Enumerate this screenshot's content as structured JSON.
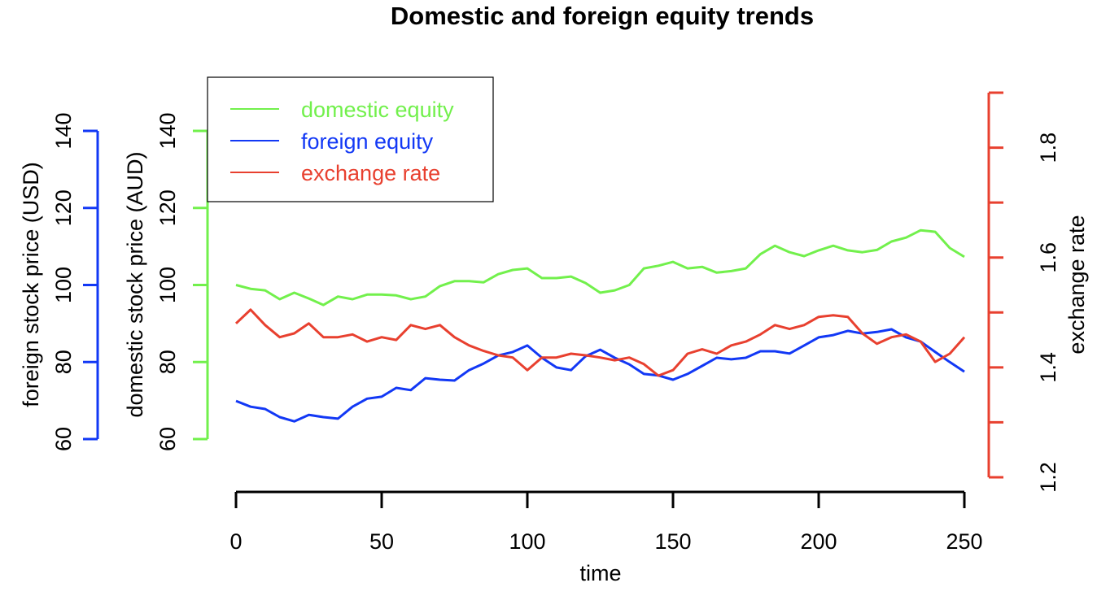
{
  "chart_data": {
    "type": "line",
    "title": "Domestic and foreign equity trends",
    "xlabel": "time",
    "xlim": [
      0,
      250
    ],
    "x_ticks": [
      0,
      50,
      100,
      150,
      200,
      250
    ],
    "grid": false,
    "legend_placement": "top-left",
    "axes": {
      "foreign": {
        "label": "foreign stock price (USD)",
        "ylim": [
          60,
          140
        ],
        "ticks": [
          60,
          80,
          100,
          120,
          140
        ],
        "color": "#1238F5",
        "side": "left-outer"
      },
      "domestic": {
        "label": "domestic stock price (AUD)",
        "ylim": [
          60,
          140
        ],
        "ticks": [
          60,
          80,
          100,
          120,
          140
        ],
        "color": "#72F04C",
        "side": "left-inner"
      },
      "exchange": {
        "label": "exchange rate",
        "ylim": [
          1.2,
          1.9
        ],
        "ticks": [
          1.2,
          1.3,
          1.4,
          1.5,
          1.6,
          1.7,
          1.8,
          1.9
        ],
        "tick_labels": [
          "1.2",
          "",
          "1.4",
          "",
          "1.6",
          "",
          "1.8",
          ""
        ],
        "color": "#E8402F",
        "side": "right"
      }
    },
    "x": [
      0,
      5,
      10,
      15,
      20,
      25,
      30,
      35,
      40,
      45,
      50,
      55,
      60,
      65,
      70,
      75,
      80,
      85,
      90,
      95,
      100,
      105,
      110,
      115,
      120,
      125,
      130,
      135,
      140,
      145,
      150,
      155,
      160,
      165,
      170,
      175,
      180,
      185,
      190,
      195,
      200,
      205,
      210,
      215,
      220,
      225,
      230,
      235,
      240,
      245,
      250
    ],
    "series": [
      {
        "name": "domestic equity",
        "axis": "domestic",
        "color": "#72F04C",
        "values": [
          100,
          99,
          98.6,
          96.3,
          98,
          96.5,
          94.8,
          97,
          96.3,
          97.5,
          97.5,
          97.3,
          96.3,
          97,
          99.7,
          101,
          101,
          100.7,
          102.8,
          103.9,
          104.3,
          101.8,
          101.8,
          102.2,
          100.5,
          98,
          98.6,
          100,
          104.3,
          105,
          106,
          104.3,
          104.7,
          103.2,
          103.6,
          104.3,
          108,
          110.2,
          108.5,
          107.5,
          109,
          110.2,
          109,
          108.5,
          109.1,
          111.3,
          112.3,
          114.2,
          113.8,
          109.6,
          107.3
        ]
      },
      {
        "name": "foreign equity",
        "axis": "foreign",
        "color": "#1238F5",
        "values": [
          69.9,
          68.4,
          67.8,
          65.7,
          64.6,
          66.3,
          65.7,
          65.3,
          68.4,
          70.5,
          71,
          73.3,
          72.7,
          75.8,
          75.4,
          75.2,
          77.9,
          79.6,
          81.7,
          82.6,
          84.3,
          81.1,
          78.6,
          77.9,
          81.5,
          83.2,
          81.1,
          79.4,
          76.9,
          76.5,
          75.4,
          76.9,
          79,
          81.1,
          80.7,
          81.1,
          82.8,
          82.8,
          82.2,
          84.3,
          86.4,
          87,
          88.1,
          87.4,
          87.8,
          88.5,
          86.4,
          85.3,
          82.6,
          80,
          77.5
        ]
      },
      {
        "name": "exchange rate",
        "axis": "exchange",
        "color": "#E8402F",
        "values": [
          1.48,
          1.505,
          1.477,
          1.455,
          1.462,
          1.48,
          1.455,
          1.455,
          1.46,
          1.447,
          1.455,
          1.45,
          1.477,
          1.47,
          1.477,
          1.455,
          1.44,
          1.43,
          1.422,
          1.418,
          1.395,
          1.418,
          1.418,
          1.425,
          1.422,
          1.418,
          1.413,
          1.418,
          1.406,
          1.385,
          1.395,
          1.425,
          1.433,
          1.425,
          1.44,
          1.447,
          1.46,
          1.477,
          1.47,
          1.477,
          1.492,
          1.495,
          1.492,
          1.462,
          1.443,
          1.455,
          1.46,
          1.447,
          1.41,
          1.425,
          1.455
        ]
      }
    ]
  }
}
